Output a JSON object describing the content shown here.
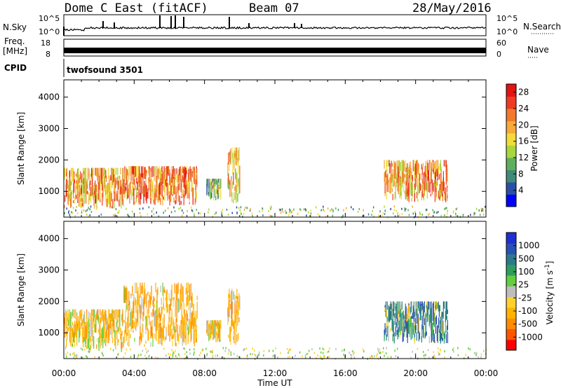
{
  "header": {
    "title": "Dome C East (fitACF)",
    "beam": "Beam 07",
    "date": "28/May/2016"
  },
  "strip_panels": {
    "nsky": {
      "label": "N.Sky",
      "ticks": [
        "10^5",
        "10^0"
      ]
    },
    "nsearch": {
      "label": "N.Search",
      "ticks": [
        "10^5",
        "10^0"
      ]
    },
    "freq": {
      "label_line1": "Freq.",
      "label_line2": "[MHz]",
      "ticks": [
        "18",
        "8"
      ]
    },
    "nave": {
      "label": "Nave",
      "ticks": [
        "60",
        "0"
      ]
    },
    "cpid": {
      "label": "CPID",
      "value": "twofsound 3501"
    }
  },
  "colors": {
    "power_scale": [
      "#0000ff",
      "#2a4fa5",
      "#3f8a78",
      "#5fae5f",
      "#a8d63c",
      "#f2dc3a",
      "#f7a93a",
      "#f27a2a",
      "#ef3b22",
      "#e21414"
    ],
    "velocity_scale": [
      "#ff0000",
      "#ff5500",
      "#ff8c00",
      "#ffb300",
      "#ffd12e",
      "#bdbdbd",
      "#63cf3e",
      "#2f9e5c",
      "#2a7a8c",
      "#2a4fb5",
      "#1f2fd2"
    ]
  },
  "chart_data": [
    {
      "type": "heatmap",
      "name": "power",
      "ylabel": "Slant Range [km]",
      "xlabel": "",
      "x_ticks": [
        "00:00",
        "04:00",
        "08:00",
        "12:00",
        "16:00",
        "20:00",
        "00:00"
      ],
      "y_ticks": [
        1000,
        2000,
        3000,
        4000
      ],
      "xlim_hours": [
        0,
        24
      ],
      "ylim_km": [
        180,
        4550
      ],
      "colorbar": {
        "label": "Power [dB]",
        "ticks": [
          "4",
          "8",
          "12",
          "16",
          "20",
          "24",
          "28"
        ],
        "range": [
          0,
          30
        ]
      },
      "echo_regions": [
        {
          "t_start": 0.0,
          "t_end": 3.4,
          "r_min": 450,
          "r_max": 1750,
          "level": 20
        },
        {
          "t_start": 3.4,
          "t_end": 7.6,
          "r_min": 550,
          "r_max": 1800,
          "level": 22
        },
        {
          "t_start": 8.1,
          "t_end": 8.9,
          "r_min": 700,
          "r_max": 1400,
          "level": 12
        },
        {
          "t_start": 9.3,
          "t_end": 10.0,
          "r_min": 600,
          "r_max": 2400,
          "level": 18
        },
        {
          "t_start": 18.2,
          "t_end": 21.8,
          "r_min": 650,
          "r_max": 2000,
          "level": 20
        }
      ]
    },
    {
      "type": "heatmap",
      "name": "velocity",
      "ylabel": "Slant Range [km]",
      "xlabel": "Time UT",
      "x_ticks": [
        "00:00",
        "04:00",
        "08:00",
        "12:00",
        "16:00",
        "20:00",
        "00:00"
      ],
      "y_ticks": [
        1000,
        2000,
        3000,
        4000
      ],
      "xlim_hours": [
        0,
        24
      ],
      "ylim_km": [
        180,
        4550
      ],
      "colorbar": {
        "label": "Velocity [m s^-1]",
        "ticks": [
          "1000",
          "500",
          "100",
          "25",
          "-25",
          "-100",
          "-500",
          "-1000"
        ]
      },
      "echo_regions": [
        {
          "t_start": 0.0,
          "t_end": 3.4,
          "r_min": 450,
          "r_max": 1750,
          "level": -150
        },
        {
          "t_start": 3.4,
          "t_end": 7.6,
          "r_min": 550,
          "r_max": 2600,
          "level": -200
        },
        {
          "t_start": 8.1,
          "t_end": 8.9,
          "r_min": 700,
          "r_max": 1400,
          "level": -150
        },
        {
          "t_start": 9.3,
          "t_end": 10.0,
          "r_min": 600,
          "r_max": 2400,
          "level": -200
        },
        {
          "t_start": 18.2,
          "t_end": 21.8,
          "r_min": 650,
          "r_max": 2000,
          "level": 300
        }
      ]
    }
  ]
}
